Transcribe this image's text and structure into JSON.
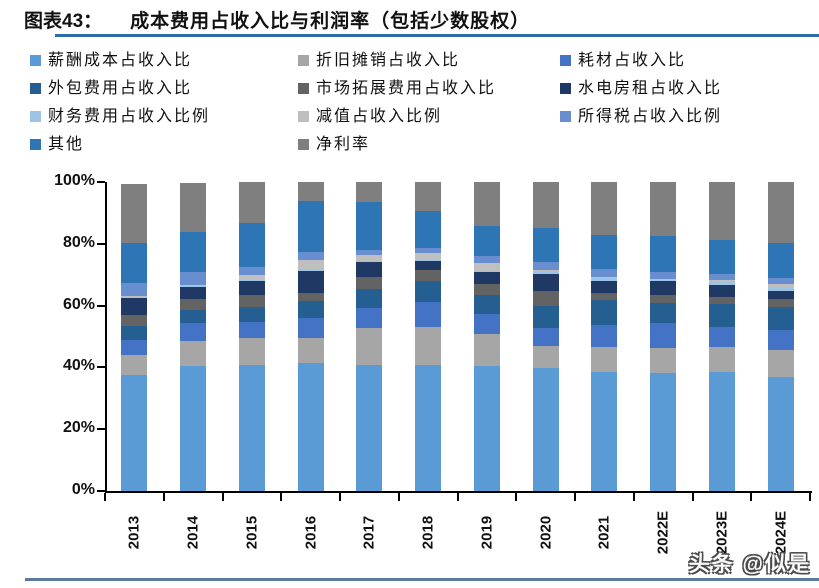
{
  "header": {
    "label": "图表43：",
    "title": "成本费用占收入比与利润率（包括少数股权）"
  },
  "watermark": {
    "text": "头条 @似是"
  },
  "colors": {
    "title_rule": "#2E6DA4",
    "bottom_rule": "#5E7A9E",
    "axis": "#000000"
  },
  "chart_data": {
    "type": "bar",
    "stacked": true,
    "title": "成本费用占收入比与利润率（包括少数股权）",
    "legend_position": "top",
    "grid": false,
    "xlabel": "",
    "ylabel": "",
    "ylim": [
      0,
      100
    ],
    "y_ticks": [
      0,
      20,
      40,
      60,
      80,
      100
    ],
    "y_tick_suffix": "%",
    "categories": [
      "2013",
      "2014",
      "2015",
      "2016",
      "2017",
      "2018",
      "2019",
      "2020",
      "2021",
      "2022E",
      "2023E",
      "2024E"
    ],
    "series": [
      {
        "name": "薪酬成本占收入比",
        "color": "#5B9BD5",
        "values": [
          37.5,
          40.5,
          40.8,
          41.5,
          40.8,
          40.8,
          40.3,
          39.8,
          38.6,
          38.1,
          38.5,
          37.0
        ]
      },
      {
        "name": "折旧摊销占收入比",
        "color": "#A6A6A6",
        "values": [
          6.5,
          8.1,
          8.6,
          8.1,
          12.0,
          12.2,
          10.6,
          7.0,
          8.1,
          8.1,
          8.1,
          8.6
        ]
      },
      {
        "name": "耗材占收入比",
        "color": "#4472C4",
        "values": [
          4.9,
          5.9,
          5.4,
          6.5,
          6.5,
          8.1,
          6.5,
          6.0,
          7.0,
          8.1,
          6.5,
          6.5
        ]
      },
      {
        "name": "外包费用占收入比",
        "color": "#255E91",
        "values": [
          4.5,
          4.0,
          4.9,
          5.4,
          6.0,
          6.7,
          5.9,
          7.0,
          8.0,
          6.5,
          7.3,
          7.5
        ]
      },
      {
        "name": "市场拓展费用占收入比",
        "color": "#636363",
        "values": [
          3.6,
          3.6,
          3.8,
          2.7,
          3.8,
          3.6,
          3.8,
          4.9,
          2.3,
          2.7,
          2.4,
          2.5
        ]
      },
      {
        "name": "水电房租占收入比",
        "color": "#1F3864",
        "values": [
          5.4,
          3.8,
          4.5,
          7.1,
          5.1,
          3.0,
          3.7,
          5.4,
          3.8,
          4.4,
          3.8,
          2.5
        ]
      },
      {
        "name": "财务费用占收入比例",
        "color": "#9DC3E6",
        "values": [
          0.4,
          0.5,
          0.3,
          0.3,
          0.3,
          0.3,
          0.3,
          1.0,
          1.0,
          0.5,
          1.5,
          1.2
        ]
      },
      {
        "name": "减值占收入比例",
        "color": "#BFBFBF",
        "values": [
          0.3,
          0.4,
          1.7,
          3.2,
          1.9,
          2.3,
          2.6,
          0.5,
          0.3,
          0.3,
          0.3,
          1.1
        ]
      },
      {
        "name": "所得税占收入比例",
        "color": "#698ED0",
        "values": [
          4.3,
          4.0,
          2.4,
          2.7,
          1.7,
          1.7,
          2.2,
          2.6,
          2.7,
          2.1,
          1.8,
          2.0
        ]
      },
      {
        "name": "其他",
        "color": "#2E75B6",
        "values": [
          13.0,
          13.0,
          14.2,
          16.4,
          15.4,
          11.8,
          9.8,
          10.8,
          11.2,
          11.6,
          11.0,
          11.4
        ]
      },
      {
        "name": "净利率",
        "color": "#7F7F7F",
        "values": [
          18.8,
          16.0,
          13.4,
          6.1,
          6.5,
          9.5,
          14.3,
          15.0,
          17.0,
          17.6,
          18.8,
          19.7
        ]
      }
    ]
  }
}
